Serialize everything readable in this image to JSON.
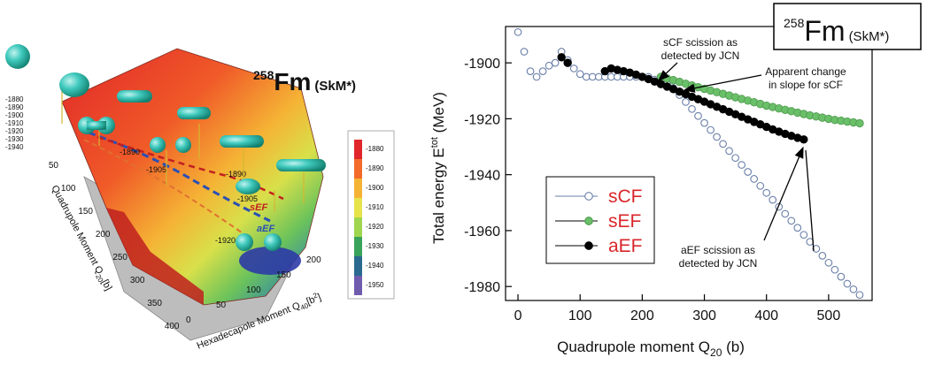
{
  "left_panel": {
    "mass_number": "258",
    "element": "Fm",
    "force": "(SkM*)",
    "contour_labels": [
      "-1890",
      "-1905",
      "-1890",
      "-1905",
      "-1920"
    ],
    "path_labels": [
      "sEF",
      "aEF"
    ],
    "color_scale": {
      "ticks": [
        "-1880",
        "-1890",
        "-1900",
        "-1910",
        "-1920",
        "-1930",
        "-1940",
        "-1950"
      ],
      "colors": [
        "#e0262a",
        "#f26b2a",
        "#f5b335",
        "#e6e44a",
        "#9fd54f",
        "#3aa35b",
        "#2a6a8f",
        "#6f5cad"
      ]
    },
    "z_ticks": [
      "-1880",
      "-1890",
      "-1900",
      "-1910",
      "-1920",
      "-1930",
      "-1940"
    ],
    "q20_ticks": [
      "50",
      "100",
      "150",
      "200",
      "250",
      "300",
      "350",
      "400"
    ],
    "q20_label": "Quadrupole Moment Q",
    "q20_sub": "20",
    "q20_unit": "[b]",
    "q40_ticks": [
      "0",
      "50",
      "100",
      "150",
      "200"
    ],
    "q40_label": "Hexadecapole Moment Q",
    "q40_sub": "40",
    "q40_unit": "[b",
    "q40_unit_sup": "2",
    "q40_unit_end": "]"
  },
  "chart_data": {
    "type": "scatter",
    "title_mass": "258",
    "title_element": "Fm",
    "title_force": "(SkM*)",
    "xlabel": "Quadrupole moment Q",
    "xlabel_sub": "20",
    "xlabel_unit": " (b)",
    "ylabel": "Total energy E",
    "ylabel_sup": "tot",
    "ylabel_unit": " (MeV)",
    "xlim": [
      -20,
      570
    ],
    "ylim": [
      -1985,
      -1887
    ],
    "xticks": [
      0,
      100,
      200,
      300,
      400,
      500
    ],
    "yticks": [
      -1900,
      -1920,
      -1940,
      -1960,
      -1980
    ],
    "legend_position": "left",
    "series": [
      {
        "name": "sCF",
        "marker": "open",
        "color": "#6a7fa8",
        "x": [
          0,
          10,
          20,
          30,
          40,
          50,
          60,
          70,
          80,
          90,
          100,
          110,
          120,
          130,
          140,
          150,
          160,
          170,
          180,
          190,
          200,
          210,
          220,
          230,
          240,
          250,
          260,
          270,
          280,
          290,
          300,
          310,
          320,
          330,
          340,
          350,
          360,
          370,
          380,
          390,
          400,
          410,
          420,
          430,
          440,
          450,
          460,
          470,
          480,
          490,
          500,
          510,
          520,
          530,
          540,
          550
        ],
        "y": [
          -1889,
          -1896,
          -1903,
          -1905,
          -1903,
          -1901,
          -1900,
          -1896,
          -1899,
          -1902,
          -1904,
          -1905,
          -1905,
          -1905,
          -1905,
          -1905,
          -1905,
          -1905,
          -1905,
          -1905,
          -1905,
          -1905,
          -1906,
          -1906.5,
          -1907.5,
          -1909,
          -1911.5,
          -1914,
          -1916.5,
          -1919,
          -1921.5,
          -1924,
          -1926.5,
          -1929,
          -1931.5,
          -1934,
          -1936.5,
          -1939,
          -1941.5,
          -1944,
          -1946.5,
          -1949,
          -1951.5,
          -1954,
          -1956.5,
          -1959,
          -1961.5,
          -1964,
          -1966.5,
          -1969,
          -1971.5,
          -1974,
          -1976.5,
          -1979,
          -1981,
          -1983
        ]
      },
      {
        "name": "sEF",
        "marker": "filled",
        "color": "#6abf69",
        "x": [
          230,
          240,
          250,
          260,
          270,
          280,
          290,
          300,
          310,
          320,
          330,
          340,
          350,
          360,
          370,
          380,
          390,
          400,
          410,
          420,
          430,
          440,
          450,
          460,
          470,
          480,
          490,
          500,
          510,
          520,
          530,
          540,
          550
        ],
        "y": [
          -1905,
          -1905.6,
          -1906.2,
          -1906.8,
          -1907.5,
          -1908.1,
          -1908.7,
          -1909.3,
          -1909.9,
          -1910.5,
          -1911.1,
          -1911.7,
          -1912.3,
          -1912.9,
          -1913.5,
          -1914.1,
          -1914.7,
          -1915.3,
          -1915.8,
          -1916.3,
          -1916.8,
          -1917.3,
          -1917.8,
          -1918.3,
          -1918.8,
          -1919.2,
          -1919.6,
          -1920,
          -1920.4,
          -1920.7,
          -1921,
          -1921.3,
          -1921.6
        ]
      },
      {
        "name": "aEF",
        "marker": "filled",
        "color": "#000000",
        "x": [
          70,
          80,
          140,
          150,
          160,
          170,
          180,
          190,
          200,
          210,
          220,
          230,
          240,
          250,
          260,
          270,
          280,
          290,
          300,
          310,
          320,
          330,
          340,
          350,
          360,
          370,
          380,
          390,
          400,
          410,
          420,
          430,
          440,
          450,
          460
        ],
        "y": [
          -1898,
          -1900,
          -1903,
          -1902,
          -1902.5,
          -1903,
          -1903.5,
          -1904.2,
          -1905,
          -1905.8,
          -1906.7,
          -1907.6,
          -1908.5,
          -1909.4,
          -1910.3,
          -1911.2,
          -1912.1,
          -1913,
          -1913.9,
          -1914.8,
          -1915.7,
          -1916.6,
          -1917.5,
          -1918.4,
          -1919.3,
          -1920.2,
          -1921.1,
          -1922,
          -1922.9,
          -1923.8,
          -1924.6,
          -1925.4,
          -1926.1,
          -1926.8,
          -1927.4
        ]
      }
    ],
    "annotations": [
      {
        "lines": [
          "sCF scission as",
          "detected by JCN"
        ]
      },
      {
        "lines": [
          "Apparent change",
          "in slope for sCF"
        ]
      },
      {
        "lines": [
          "aEF scission as",
          "detected by JCN"
        ]
      }
    ]
  }
}
